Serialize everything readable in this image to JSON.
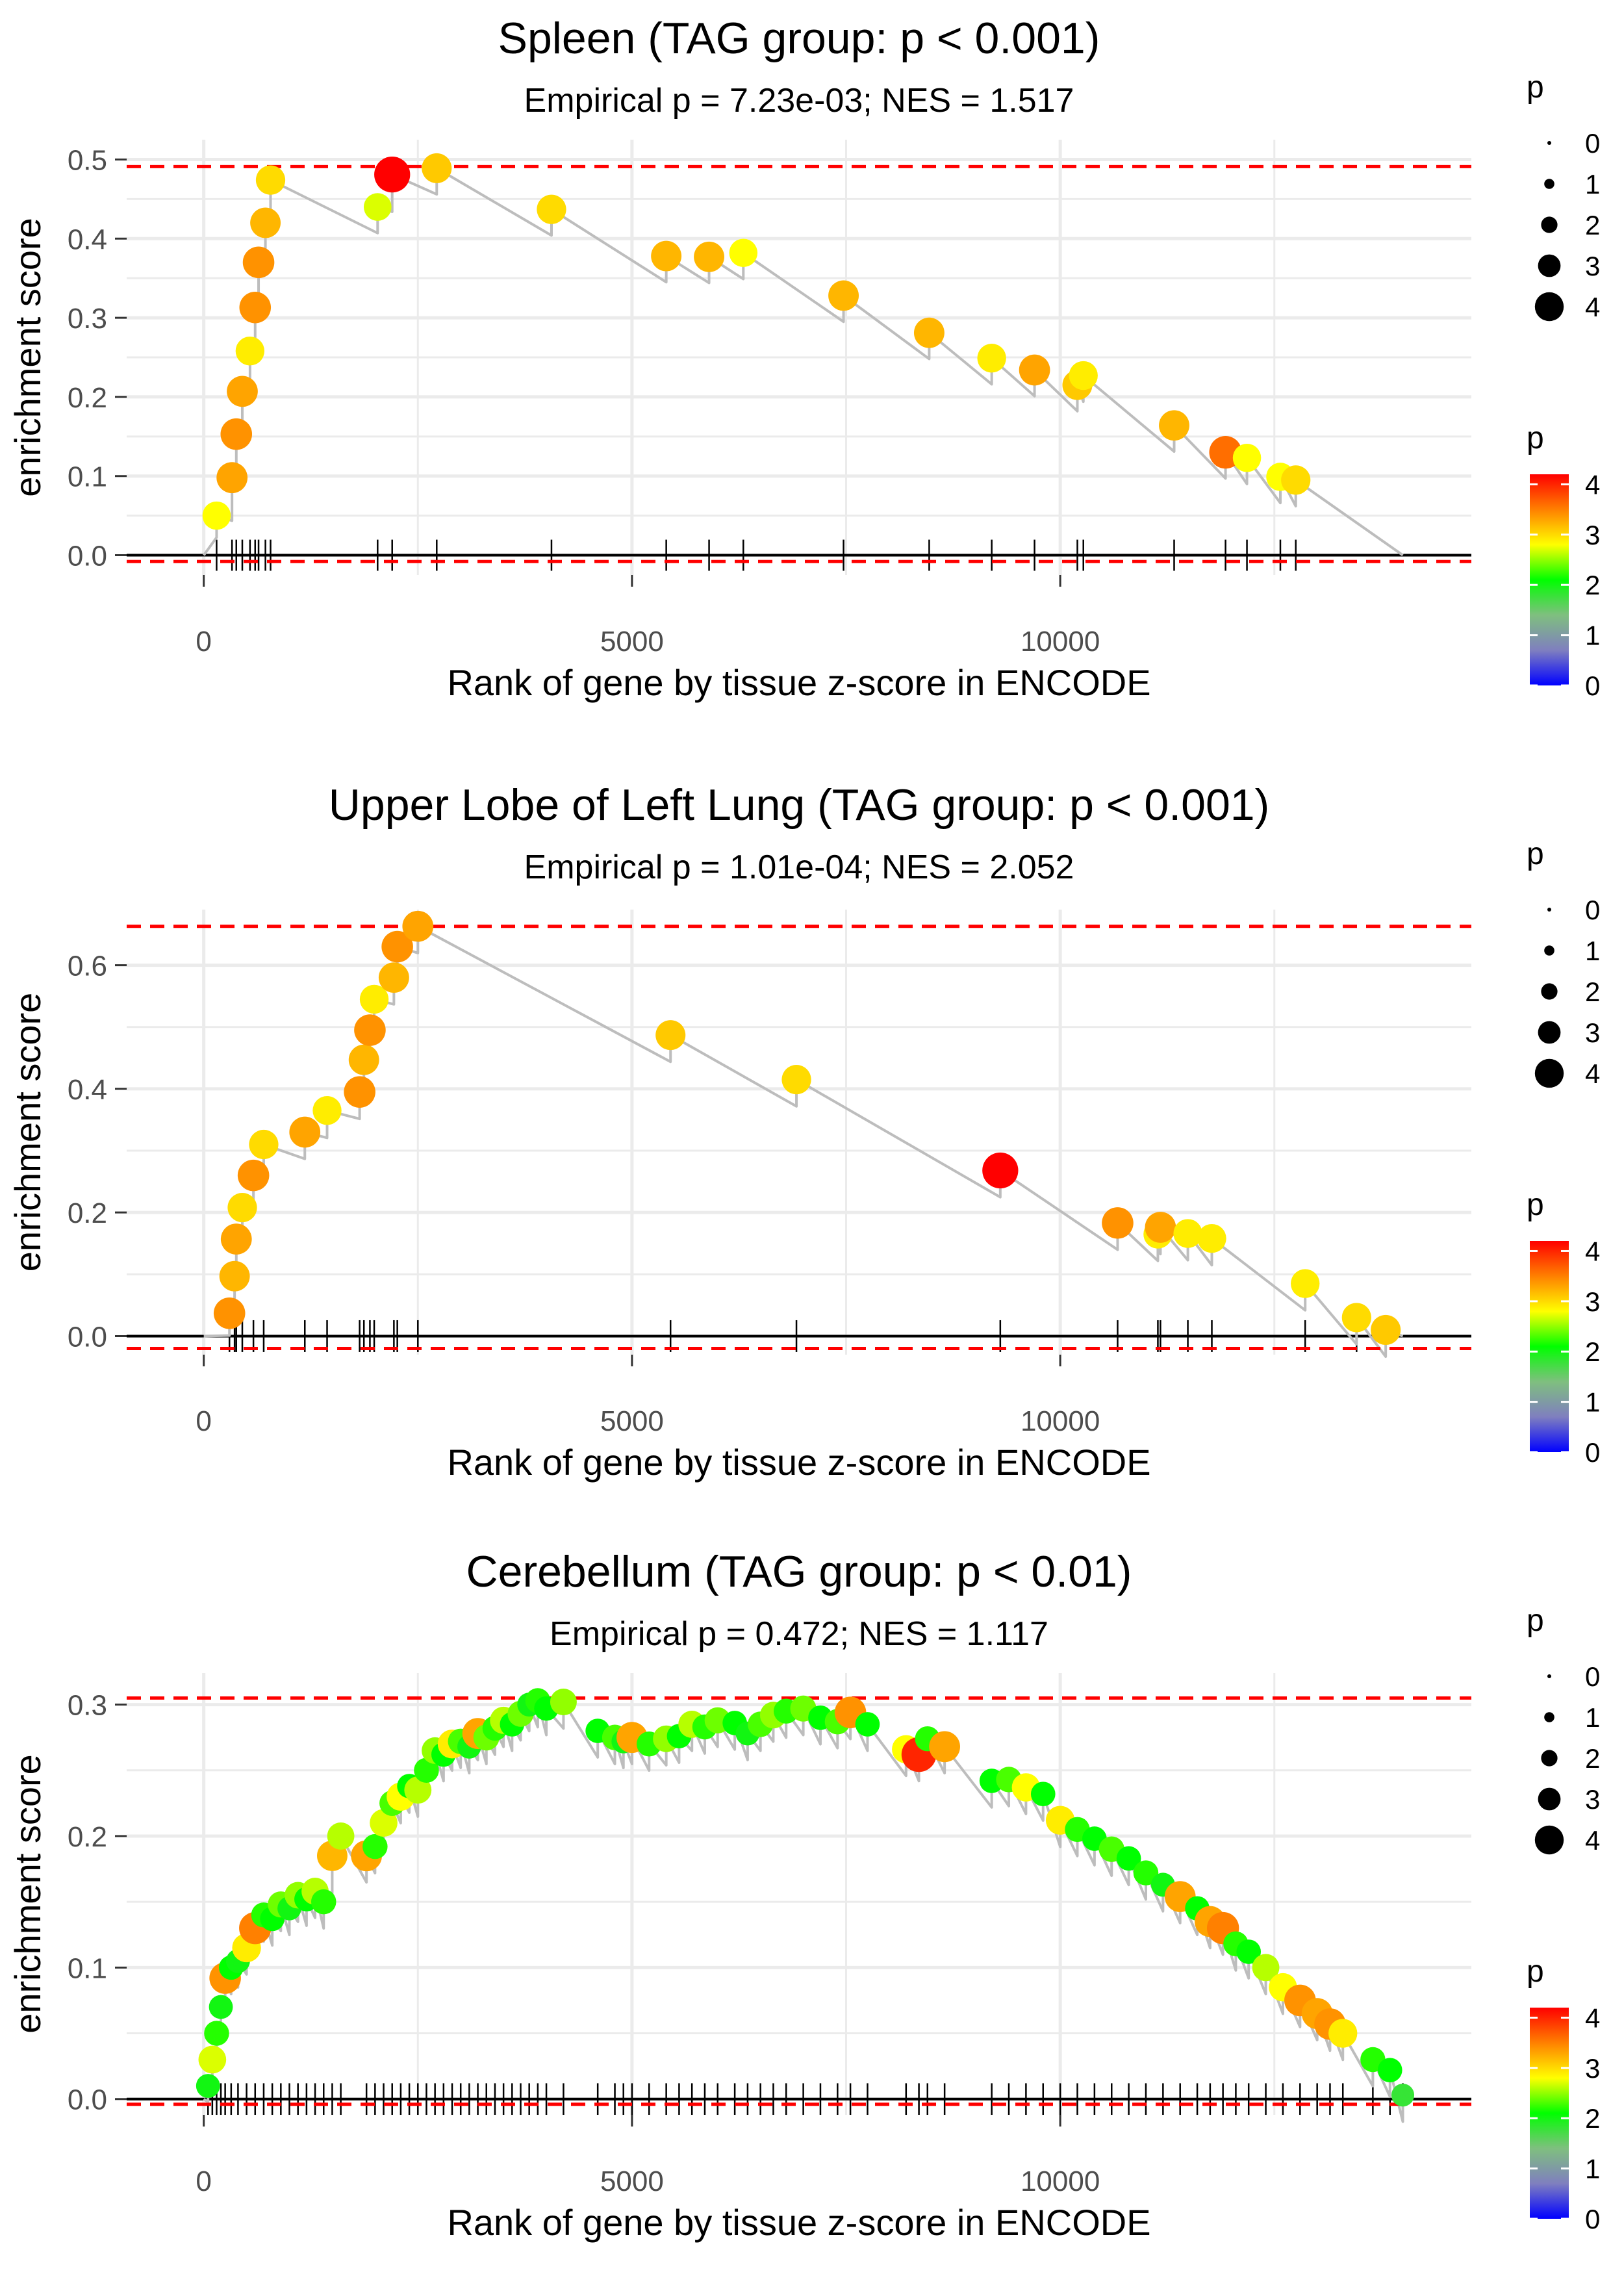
{
  "colors": {
    "grid": "#ebebeb",
    "ref_line": "#ff0000",
    "zero_line": "#000000",
    "curve": "#bdbdbd",
    "tick": "#000000",
    "scale": [
      "#0000ff",
      "#7f7fbf",
      "#7fbf7f",
      "#00ff00",
      "#ffff00",
      "#ff8000",
      "#ff0000"
    ]
  },
  "chart_data": [
    {
      "type": "scatter",
      "title": "Spleen (TAG group: p < 0.001)",
      "subtitle": "Empirical p = 7.23e-03; NES = 1.517",
      "xlabel": "Rank of gene by tissue z-score in ENCODE",
      "ylabel": "enrichment score",
      "xlim": [
        -900,
        14800
      ],
      "ylim": [
        -0.025,
        0.525
      ],
      "xticks": [
        0,
        5000,
        10000
      ],
      "xtick_labels": [
        "0",
        "5000",
        "10000"
      ],
      "yticks": [
        0,
        0.1,
        0.2,
        0.3,
        0.4,
        0.5
      ],
      "ytick_labels": [
        "0.0",
        "0.1",
        "0.2",
        "0.3",
        "0.4",
        "0.5"
      ],
      "ref_lines": [
        0.491,
        -0.008
      ],
      "end_rank": 14000,
      "points": [
        {
          "x": 150,
          "y": 0.05,
          "p": 2.8
        },
        {
          "x": 330,
          "y": 0.098,
          "p": 3.3
        },
        {
          "x": 380,
          "y": 0.153,
          "p": 3.4
        },
        {
          "x": 450,
          "y": 0.207,
          "p": 3.3
        },
        {
          "x": 540,
          "y": 0.258,
          "p": 2.9
        },
        {
          "x": 600,
          "y": 0.313,
          "p": 3.4
        },
        {
          "x": 640,
          "y": 0.37,
          "p": 3.4
        },
        {
          "x": 720,
          "y": 0.42,
          "p": 3.2
        },
        {
          "x": 780,
          "y": 0.474,
          "p": 3.0
        },
        {
          "x": 2030,
          "y": 0.44,
          "p": 2.7
        },
        {
          "x": 2200,
          "y": 0.481,
          "p": 4.2
        },
        {
          "x": 2720,
          "y": 0.489,
          "p": 3.1
        },
        {
          "x": 4060,
          "y": 0.437,
          "p": 3.0
        },
        {
          "x": 5400,
          "y": 0.378,
          "p": 3.2
        },
        {
          "x": 5900,
          "y": 0.377,
          "p": 3.2
        },
        {
          "x": 6300,
          "y": 0.382,
          "p": 2.8
        },
        {
          "x": 7470,
          "y": 0.328,
          "p": 3.2
        },
        {
          "x": 8470,
          "y": 0.281,
          "p": 3.2
        },
        {
          "x": 9200,
          "y": 0.249,
          "p": 2.9
        },
        {
          "x": 9700,
          "y": 0.234,
          "p": 3.3
        },
        {
          "x": 10200,
          "y": 0.215,
          "p": 3.1
        },
        {
          "x": 10270,
          "y": 0.227,
          "p": 2.9
        },
        {
          "x": 11330,
          "y": 0.164,
          "p": 3.2
        },
        {
          "x": 11930,
          "y": 0.13,
          "p": 3.6
        },
        {
          "x": 12180,
          "y": 0.123,
          "p": 2.8
        },
        {
          "x": 12570,
          "y": 0.099,
          "p": 2.8
        },
        {
          "x": 12750,
          "y": 0.095,
          "p": 3.0
        }
      ]
    },
    {
      "type": "scatter",
      "title": "Upper Lobe of Left Lung (TAG group: p < 0.001)",
      "subtitle": "Empirical p = 1.01e-04; NES = 2.052",
      "xlabel": "Rank of gene by tissue z-score in ENCODE",
      "ylabel": "enrichment score",
      "xlim": [
        -900,
        14800
      ],
      "ylim": [
        -0.03,
        0.69
      ],
      "xticks": [
        0,
        5000,
        10000
      ],
      "xtick_labels": [
        "0",
        "5000",
        "10000"
      ],
      "yticks": [
        0,
        0.2,
        0.4,
        0.6
      ],
      "ytick_labels": [
        "0.0",
        "0.2",
        "0.4",
        "0.6"
      ],
      "ref_lines": [
        0.663,
        -0.02
      ],
      "end_rank": 14000,
      "points": [
        {
          "x": 300,
          "y": 0.037,
          "p": 3.4
        },
        {
          "x": 360,
          "y": 0.097,
          "p": 3.2
        },
        {
          "x": 380,
          "y": 0.157,
          "p": 3.3
        },
        {
          "x": 450,
          "y": 0.208,
          "p": 3.0
        },
        {
          "x": 580,
          "y": 0.26,
          "p": 3.4
        },
        {
          "x": 700,
          "y": 0.31,
          "p": 3.0
        },
        {
          "x": 1180,
          "y": 0.33,
          "p": 3.3
        },
        {
          "x": 1440,
          "y": 0.365,
          "p": 2.9
        },
        {
          "x": 1820,
          "y": 0.395,
          "p": 3.4
        },
        {
          "x": 1870,
          "y": 0.447,
          "p": 3.2
        },
        {
          "x": 1940,
          "y": 0.495,
          "p": 3.4
        },
        {
          "x": 1990,
          "y": 0.545,
          "p": 2.9
        },
        {
          "x": 2220,
          "y": 0.58,
          "p": 3.2
        },
        {
          "x": 2260,
          "y": 0.63,
          "p": 3.4
        },
        {
          "x": 2500,
          "y": 0.663,
          "p": 3.3
        },
        {
          "x": 5450,
          "y": 0.487,
          "p": 3.1
        },
        {
          "x": 6920,
          "y": 0.415,
          "p": 3.0
        },
        {
          "x": 9300,
          "y": 0.268,
          "p": 4.2
        },
        {
          "x": 10670,
          "y": 0.183,
          "p": 3.4
        },
        {
          "x": 11140,
          "y": 0.165,
          "p": 2.9
        },
        {
          "x": 11170,
          "y": 0.176,
          "p": 3.3
        },
        {
          "x": 11490,
          "y": 0.166,
          "p": 2.9
        },
        {
          "x": 11770,
          "y": 0.158,
          "p": 2.9
        },
        {
          "x": 12860,
          "y": 0.085,
          "p": 2.9
        },
        {
          "x": 13460,
          "y": 0.03,
          "p": 3.0
        },
        {
          "x": 13800,
          "y": 0.01,
          "p": 3.1
        }
      ]
    },
    {
      "type": "scatter",
      "title": "Cerebellum (TAG group: p < 0.01)",
      "subtitle": "Empirical p = 0.472; NES = 1.117",
      "xlabel": "Rank of gene by tissue z-score in ENCODE",
      "ylabel": "enrichment score",
      "xlim": [
        -900,
        14800
      ],
      "ylim": [
        -0.012,
        0.324
      ],
      "xticks": [
        0,
        5000,
        10000
      ],
      "xtick_labels": [
        "0",
        "5000",
        "10000"
      ],
      "yticks": [
        0,
        0.1,
        0.2,
        0.3
      ],
      "ytick_labels": [
        "0.0",
        "0.1",
        "0.2",
        "0.3"
      ],
      "ref_lines": [
        0.305,
        -0.004
      ],
      "end_rank": 14000,
      "points": [
        {
          "x": 50,
          "y": 0.01,
          "p": 2.0
        },
        {
          "x": 100,
          "y": 0.03,
          "p": 2.7
        },
        {
          "x": 150,
          "y": 0.05,
          "p": 2.2
        },
        {
          "x": 200,
          "y": 0.07,
          "p": 2.0
        },
        {
          "x": 250,
          "y": 0.092,
          "p": 3.4
        },
        {
          "x": 320,
          "y": 0.1,
          "p": 2.1
        },
        {
          "x": 400,
          "y": 0.105,
          "p": 2.0
        },
        {
          "x": 500,
          "y": 0.115,
          "p": 2.9
        },
        {
          "x": 600,
          "y": 0.13,
          "p": 3.5
        },
        {
          "x": 700,
          "y": 0.14,
          "p": 2.2
        },
        {
          "x": 800,
          "y": 0.137,
          "p": 2.1
        },
        {
          "x": 900,
          "y": 0.148,
          "p": 2.4
        },
        {
          "x": 1000,
          "y": 0.145,
          "p": 2.0
        },
        {
          "x": 1100,
          "y": 0.155,
          "p": 2.5
        },
        {
          "x": 1200,
          "y": 0.152,
          "p": 2.1
        },
        {
          "x": 1300,
          "y": 0.158,
          "p": 2.6
        },
        {
          "x": 1400,
          "y": 0.15,
          "p": 2.2
        },
        {
          "x": 1500,
          "y": 0.185,
          "p": 3.2
        },
        {
          "x": 1600,
          "y": 0.2,
          "p": 2.6
        },
        {
          "x": 1900,
          "y": 0.185,
          "p": 3.3
        },
        {
          "x": 2000,
          "y": 0.192,
          "p": 2.2
        },
        {
          "x": 2100,
          "y": 0.21,
          "p": 2.7
        },
        {
          "x": 2200,
          "y": 0.225,
          "p": 2.3
        },
        {
          "x": 2300,
          "y": 0.23,
          "p": 2.8
        },
        {
          "x": 2400,
          "y": 0.238,
          "p": 2.1
        },
        {
          "x": 2500,
          "y": 0.235,
          "p": 2.6
        },
        {
          "x": 2600,
          "y": 0.25,
          "p": 2.2
        },
        {
          "x": 2700,
          "y": 0.265,
          "p": 2.5
        },
        {
          "x": 2800,
          "y": 0.262,
          "p": 2.1
        },
        {
          "x": 2900,
          "y": 0.27,
          "p": 2.9
        },
        {
          "x": 3000,
          "y": 0.272,
          "p": 2.3
        },
        {
          "x": 3100,
          "y": 0.268,
          "p": 2.0
        },
        {
          "x": 3200,
          "y": 0.278,
          "p": 3.3
        },
        {
          "x": 3300,
          "y": 0.275,
          "p": 2.4
        },
        {
          "x": 3400,
          "y": 0.282,
          "p": 2.2
        },
        {
          "x": 3500,
          "y": 0.288,
          "p": 2.6
        },
        {
          "x": 3600,
          "y": 0.285,
          "p": 2.1
        },
        {
          "x": 3700,
          "y": 0.293,
          "p": 2.4
        },
        {
          "x": 3800,
          "y": 0.3,
          "p": 2.0
        },
        {
          "x": 3900,
          "y": 0.303,
          "p": 2.2
        },
        {
          "x": 4000,
          "y": 0.297,
          "p": 2.1
        },
        {
          "x": 4200,
          "y": 0.302,
          "p": 2.5
        },
        {
          "x": 4600,
          "y": 0.28,
          "p": 2.1
        },
        {
          "x": 4800,
          "y": 0.275,
          "p": 2.3
        },
        {
          "x": 4900,
          "y": 0.272,
          "p": 2.0
        },
        {
          "x": 5000,
          "y": 0.275,
          "p": 3.3
        },
        {
          "x": 5200,
          "y": 0.27,
          "p": 2.2
        },
        {
          "x": 5400,
          "y": 0.274,
          "p": 2.5
        },
        {
          "x": 5550,
          "y": 0.276,
          "p": 2.1
        },
        {
          "x": 5700,
          "y": 0.285,
          "p": 2.6
        },
        {
          "x": 5850,
          "y": 0.283,
          "p": 2.2
        },
        {
          "x": 6000,
          "y": 0.288,
          "p": 2.4
        },
        {
          "x": 6200,
          "y": 0.286,
          "p": 2.1
        },
        {
          "x": 6350,
          "y": 0.278,
          "p": 2.0
        },
        {
          "x": 6500,
          "y": 0.285,
          "p": 2.3
        },
        {
          "x": 6650,
          "y": 0.292,
          "p": 2.5
        },
        {
          "x": 6800,
          "y": 0.295,
          "p": 2.2
        },
        {
          "x": 7000,
          "y": 0.297,
          "p": 2.4
        },
        {
          "x": 7200,
          "y": 0.29,
          "p": 2.1
        },
        {
          "x": 7400,
          "y": 0.287,
          "p": 2.3
        },
        {
          "x": 7550,
          "y": 0.294,
          "p": 3.4
        },
        {
          "x": 7750,
          "y": 0.285,
          "p": 2.1
        },
        {
          "x": 8200,
          "y": 0.266,
          "p": 2.8
        },
        {
          "x": 8350,
          "y": 0.262,
          "p": 4.0
        },
        {
          "x": 8450,
          "y": 0.274,
          "p": 2.2
        },
        {
          "x": 8650,
          "y": 0.268,
          "p": 3.3
        },
        {
          "x": 9200,
          "y": 0.242,
          "p": 2.1
        },
        {
          "x": 9400,
          "y": 0.243,
          "p": 2.3
        },
        {
          "x": 9600,
          "y": 0.237,
          "p": 2.8
        },
        {
          "x": 9800,
          "y": 0.232,
          "p": 2.1
        },
        {
          "x": 10000,
          "y": 0.212,
          "p": 2.9
        },
        {
          "x": 10200,
          "y": 0.205,
          "p": 2.2
        },
        {
          "x": 10400,
          "y": 0.198,
          "p": 2.1
        },
        {
          "x": 10600,
          "y": 0.19,
          "p": 2.3
        },
        {
          "x": 10800,
          "y": 0.183,
          "p": 2.1
        },
        {
          "x": 11000,
          "y": 0.172,
          "p": 2.2
        },
        {
          "x": 11200,
          "y": 0.163,
          "p": 2.0
        },
        {
          "x": 11400,
          "y": 0.154,
          "p": 3.3
        },
        {
          "x": 11600,
          "y": 0.145,
          "p": 2.1
        },
        {
          "x": 11750,
          "y": 0.135,
          "p": 3.3
        },
        {
          "x": 11900,
          "y": 0.13,
          "p": 3.5
        },
        {
          "x": 12050,
          "y": 0.118,
          "p": 2.2
        },
        {
          "x": 12200,
          "y": 0.112,
          "p": 2.1
        },
        {
          "x": 12400,
          "y": 0.1,
          "p": 2.6
        },
        {
          "x": 12600,
          "y": 0.085,
          "p": 2.8
        },
        {
          "x": 12800,
          "y": 0.075,
          "p": 3.4
        },
        {
          "x": 13000,
          "y": 0.065,
          "p": 3.3
        },
        {
          "x": 13150,
          "y": 0.057,
          "p": 3.4
        },
        {
          "x": 13300,
          "y": 0.05,
          "p": 2.9
        },
        {
          "x": 13650,
          "y": 0.03,
          "p": 2.2
        },
        {
          "x": 13850,
          "y": 0.022,
          "p": 2.1
        },
        {
          "x": 14000,
          "y": 0.003,
          "p": 1.8
        }
      ]
    }
  ],
  "legends": [
    {
      "size_title": "p",
      "size_labels": [
        "0",
        "1",
        "2",
        "3",
        "4"
      ],
      "color_title": "p",
      "color_labels": [
        "0",
        "1",
        "2",
        "3",
        "4"
      ]
    },
    {
      "size_title": "p",
      "size_labels": [
        "0",
        "1",
        "2",
        "3",
        "4"
      ],
      "color_title": "p",
      "color_labels": [
        "0",
        "1",
        "2",
        "3",
        "4"
      ]
    },
    {
      "size_title": "p",
      "size_labels": [
        "0",
        "1",
        "2",
        "3",
        "4"
      ],
      "color_title": "p",
      "color_labels": [
        "0",
        "1",
        "2",
        "3",
        "4"
      ]
    }
  ]
}
